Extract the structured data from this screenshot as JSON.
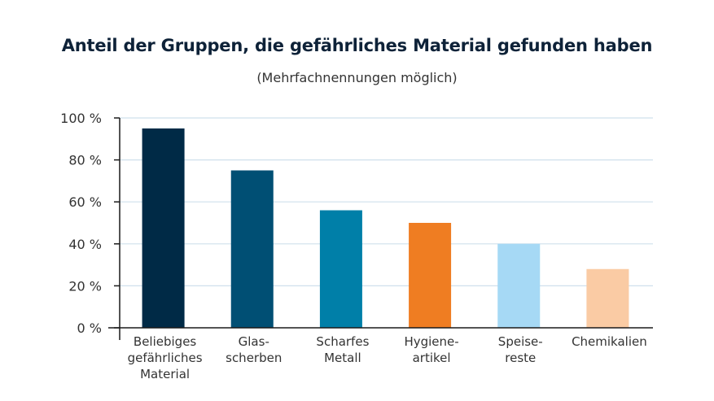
{
  "chart_data": {
    "type": "bar",
    "title": "Anteil der Gruppen, die gefährliches Material gefunden haben",
    "subtitle": "(Mehrfachnennungen möglich)",
    "xlabel": "",
    "ylabel": "",
    "ylim": [
      0,
      100
    ],
    "yticks": [
      0,
      20,
      40,
      60,
      80,
      100
    ],
    "ytick_labels": [
      "0 %",
      "20 %",
      "40 %",
      "60 %",
      "80 %",
      "100 %"
    ],
    "grid": true,
    "categories": [
      [
        "Beliebiges",
        "gefährliches",
        "Material"
      ],
      [
        "Glas-",
        "scherben"
      ],
      [
        "Scharfes",
        "Metall"
      ],
      [
        "Hygiene-",
        "artikel"
      ],
      [
        "Speise-",
        "reste"
      ],
      [
        "Chemikalien"
      ]
    ],
    "values": [
      95,
      75,
      56,
      50,
      40,
      28
    ],
    "colors": [
      "#002a46",
      "#004f74",
      "#007fa8",
      "#ef7d22",
      "#a6d9f5",
      "#facba4"
    ]
  },
  "style": {
    "grid_color": "#cfe0ec",
    "axis_color": "#1a1a1a"
  }
}
